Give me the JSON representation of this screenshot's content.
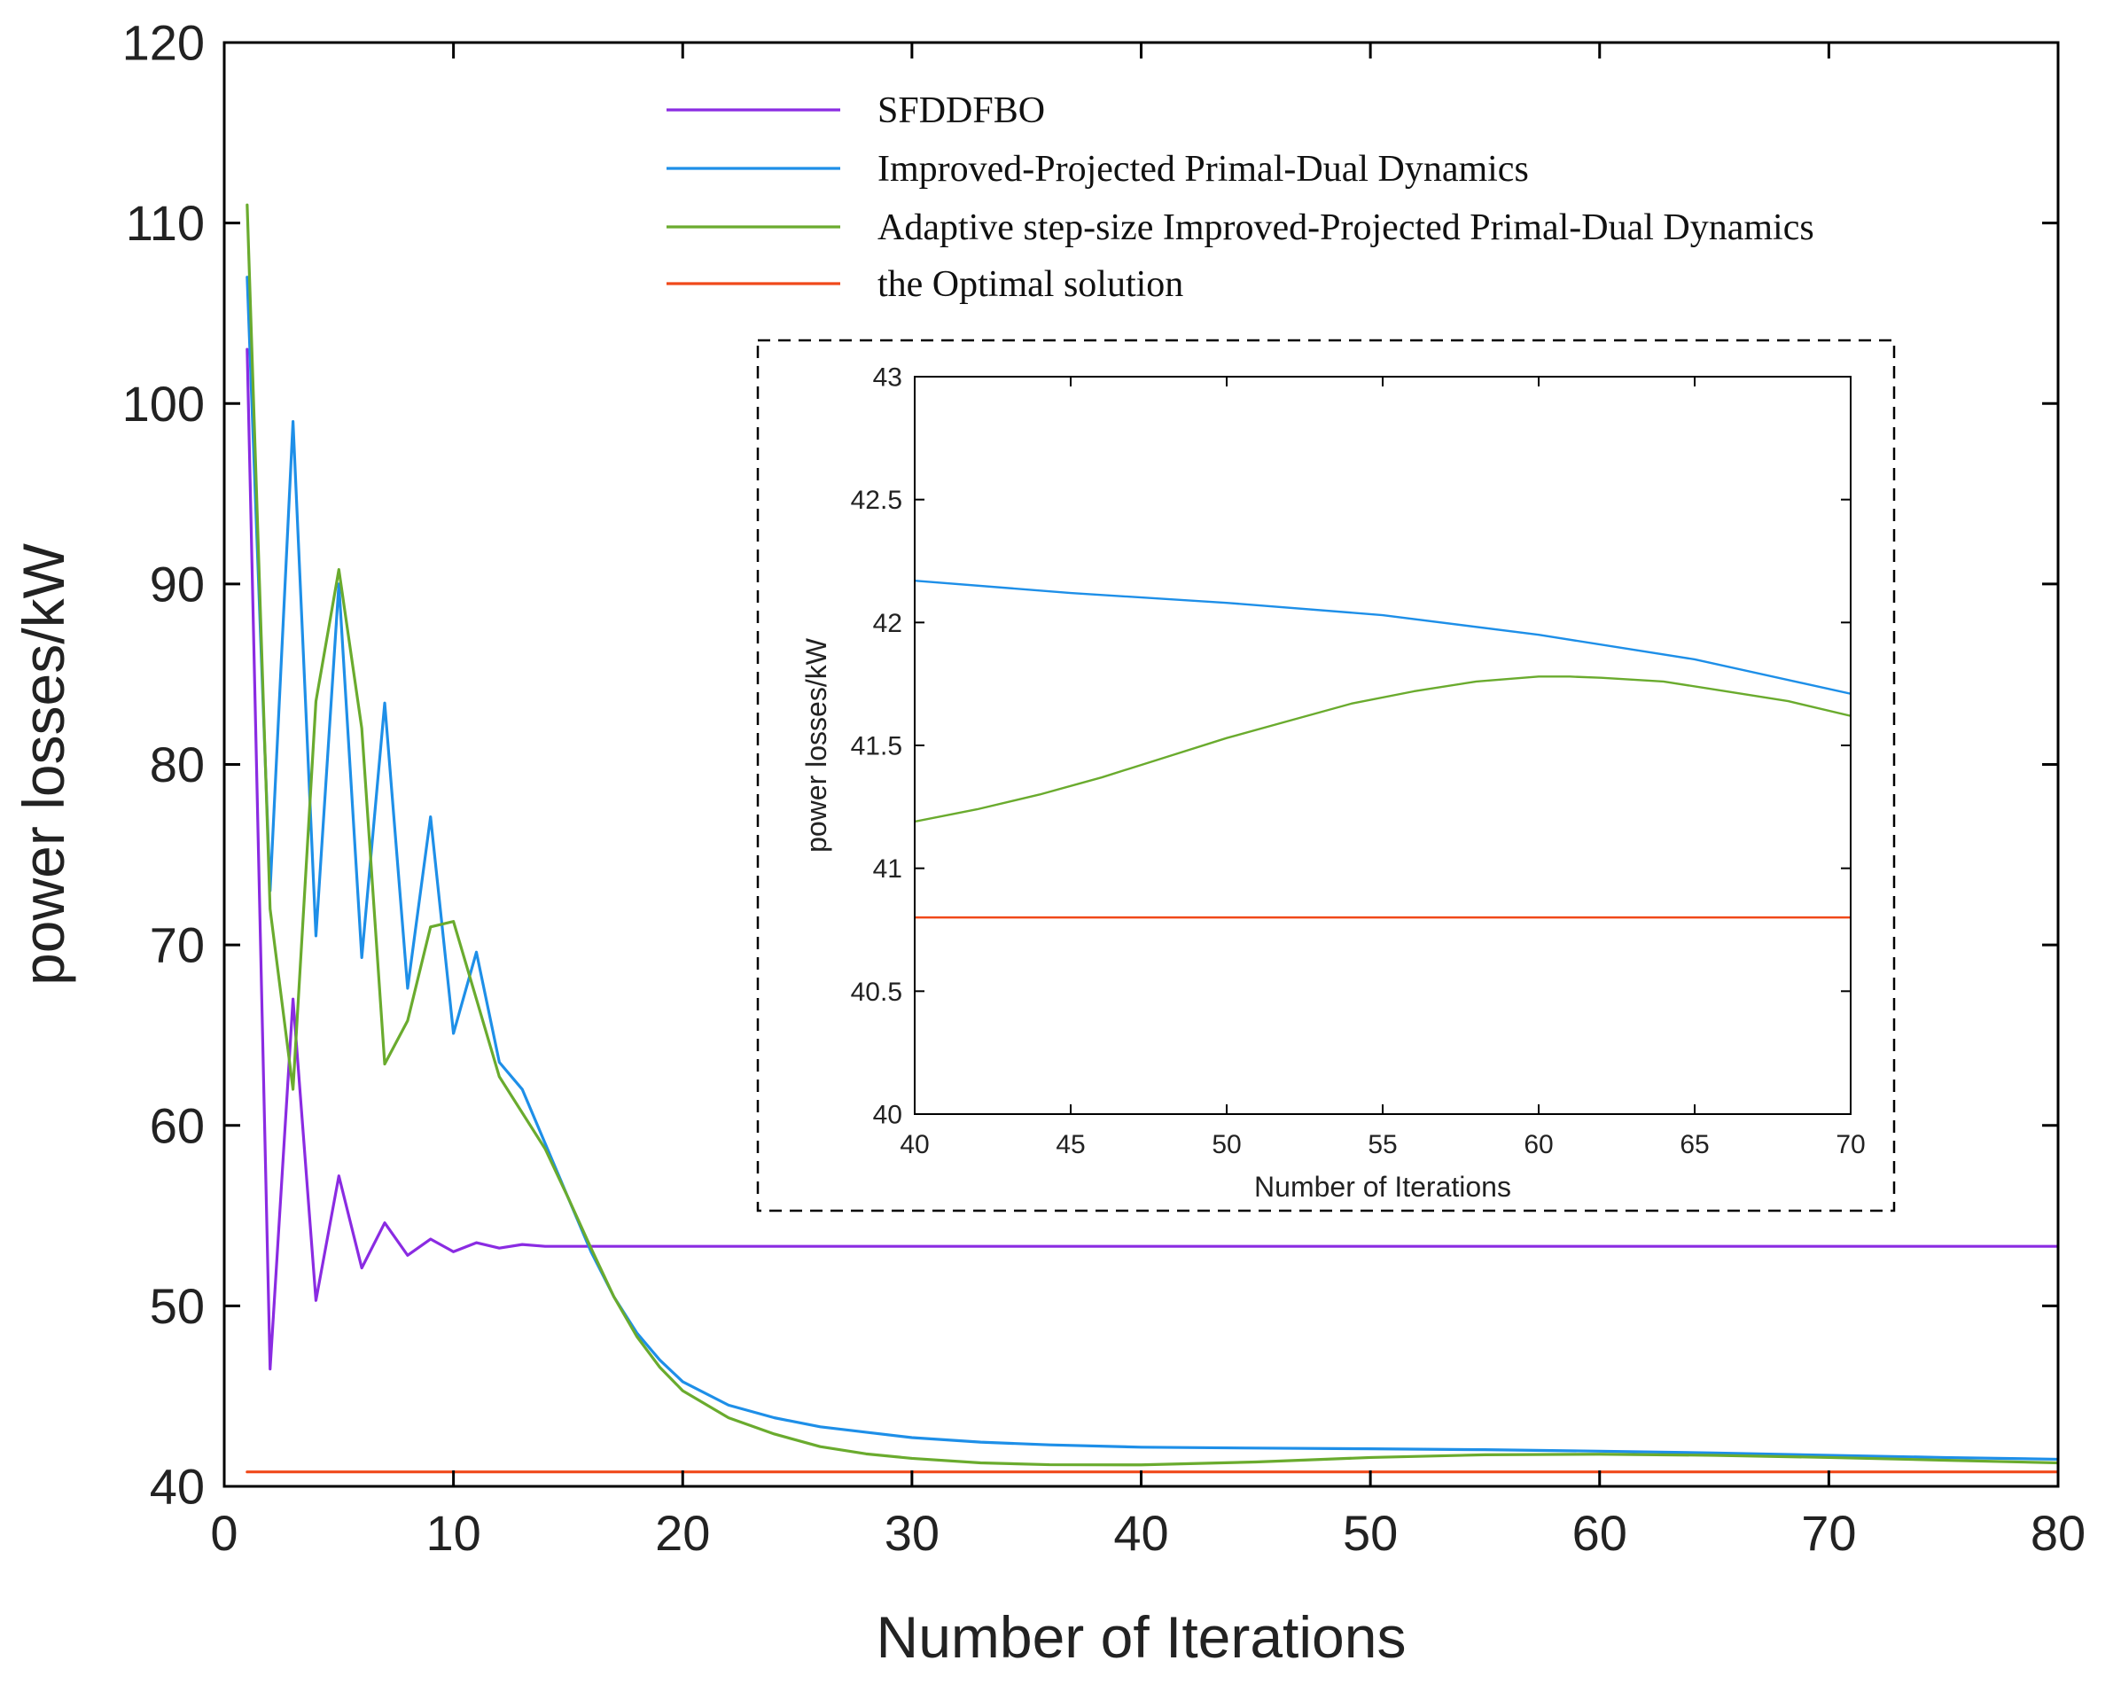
{
  "chart_data": [
    {
      "id": "main",
      "type": "line",
      "title": "",
      "xlabel": "Number of Iterations",
      "ylabel": "power losses/kW",
      "xlim": [
        0,
        80
      ],
      "ylim": [
        40,
        120
      ],
      "xticks": [
        "0",
        "10",
        "20",
        "30",
        "40",
        "50",
        "60",
        "70",
        "80"
      ],
      "yticks": [
        "40",
        "50",
        "60",
        "70",
        "80",
        "90",
        "100",
        "110",
        "120"
      ],
      "grid": false,
      "legend_position": "top-center",
      "series": [
        {
          "name": "SFDDFBO",
          "color": "#8A2BE2",
          "x": [
            1,
            2,
            3,
            4,
            5,
            6,
            7,
            8,
            9,
            10,
            11,
            12,
            13,
            14,
            15,
            80
          ],
          "y": [
            103,
            46.5,
            67,
            50.3,
            57.2,
            52.1,
            54.6,
            52.8,
            53.7,
            53.0,
            53.5,
            53.2,
            53.4,
            53.3,
            53.3,
            53.3
          ]
        },
        {
          "name": "Improved-Projected Primal-Dual Dynamics",
          "color": "#1E8FE8",
          "x": [
            1,
            2,
            3,
            4,
            5,
            6,
            7,
            8,
            9,
            10,
            11,
            12,
            13,
            14,
            15,
            16,
            17,
            18,
            19,
            20,
            22,
            24,
            26,
            28,
            30,
            33,
            36,
            40,
            45,
            50,
            55,
            60,
            65,
            70,
            75,
            80
          ],
          "y": [
            107,
            73,
            99,
            70.5,
            90,
            69.3,
            83.4,
            67.6,
            77.1,
            65.1,
            69.6,
            63.5,
            62.0,
            59.0,
            56.0,
            53.0,
            50.5,
            48.5,
            47.0,
            45.8,
            44.5,
            43.8,
            43.3,
            43.0,
            42.7,
            42.45,
            42.3,
            42.17,
            42.12,
            42.08,
            42.03,
            41.95,
            41.85,
            41.72,
            41.6,
            41.5
          ]
        },
        {
          "name": "Adaptive step-size Improved-Projected Primal-Dual Dynamics",
          "color": "#6AAB2E",
          "x": [
            1,
            2,
            3,
            4,
            5,
            6,
            7,
            8,
            9,
            10,
            11,
            12,
            13,
            14,
            15,
            16,
            17,
            18,
            19,
            20,
            22,
            24,
            26,
            28,
            30,
            33,
            36,
            40,
            45,
            50,
            55,
            60,
            65,
            70,
            75,
            80
          ],
          "y": [
            111,
            72,
            62,
            83.5,
            90.8,
            82,
            63.4,
            65.8,
            71,
            71.3,
            67,
            62.7,
            60.7,
            58.7,
            56,
            53.2,
            50.5,
            48.3,
            46.6,
            45.3,
            43.8,
            42.9,
            42.2,
            41.8,
            41.55,
            41.3,
            41.2,
            41.19,
            41.35,
            41.6,
            41.75,
            41.78,
            41.72,
            41.6,
            41.45,
            41.3
          ]
        },
        {
          "name": "the Optimal solution",
          "color": "#F0491A",
          "x": [
            1,
            80
          ],
          "y": [
            40.8,
            40.8
          ]
        }
      ]
    },
    {
      "id": "inset",
      "type": "line",
      "title": "",
      "xlabel": "Number of Iterations",
      "ylabel": "power losses/kW",
      "xlim": [
        40,
        70
      ],
      "ylim": [
        40,
        43
      ],
      "xticks": [
        "40",
        "45",
        "50",
        "55",
        "60",
        "65",
        "70"
      ],
      "yticks": [
        "40",
        "40.5",
        "41",
        "41.5",
        "42",
        "42.5",
        "43"
      ],
      "grid": false,
      "series": [
        {
          "name": "Improved-Projected Primal-Dual Dynamics",
          "color": "#1E8FE8",
          "x": [
            40,
            45,
            50,
            55,
            60,
            65,
            70
          ],
          "y": [
            42.17,
            42.12,
            42.08,
            42.03,
            41.95,
            41.85,
            41.71
          ]
        },
        {
          "name": "Adaptive step-size Improved-Projected Primal-Dual Dynamics",
          "color": "#6AAB2E",
          "x": [
            40,
            42,
            44,
            46,
            48,
            50,
            52,
            54,
            56,
            58,
            60,
            61,
            62,
            64,
            66,
            68,
            70
          ],
          "y": [
            41.19,
            41.24,
            41.3,
            41.37,
            41.45,
            41.53,
            41.6,
            41.67,
            41.72,
            41.76,
            41.78,
            41.78,
            41.775,
            41.76,
            41.72,
            41.68,
            41.62
          ]
        },
        {
          "name": "the Optimal solution",
          "color": "#F0491A",
          "x": [
            40,
            70
          ],
          "y": [
            40.8,
            40.8
          ]
        }
      ]
    }
  ]
}
